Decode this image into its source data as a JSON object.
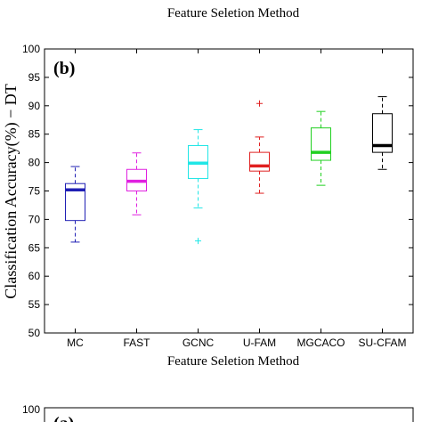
{
  "top_caption": "Feature Seletion Method",
  "chart_data": {
    "type": "box",
    "panel_label": "(b)",
    "xlabel": "Feature Seletion Method",
    "ylabel": "Classification Accuracy(%) − DT",
    "ylim": [
      50,
      100
    ],
    "yticks": [
      50,
      55,
      60,
      65,
      70,
      75,
      80,
      85,
      90,
      95,
      100
    ],
    "grid": false,
    "categories": [
      "MC",
      "FAST",
      "GCNC",
      "U-FAM",
      "MGCACO",
      "SU-CFAM"
    ],
    "series": [
      {
        "category": "MC",
        "color": "#1f1fb4",
        "q1": 69.8,
        "median": 75.2,
        "q3": 76.3,
        "whisker_low": 66.0,
        "whisker_high": 79.3,
        "outliers": []
      },
      {
        "category": "FAST",
        "color": "#e020e0",
        "q1": 75.0,
        "median": 76.7,
        "q3": 78.8,
        "whisker_low": 70.8,
        "whisker_high": 81.7,
        "outliers": []
      },
      {
        "category": "GCNC",
        "color": "#20e6e6",
        "q1": 77.2,
        "median": 79.9,
        "q3": 83.0,
        "whisker_low": 72.0,
        "whisker_high": 85.8,
        "outliers": [
          66.2
        ]
      },
      {
        "category": "U-FAM",
        "color": "#e02020",
        "q1": 78.5,
        "median": 79.4,
        "q3": 81.8,
        "whisker_low": 74.6,
        "whisker_high": 84.5,
        "outliers": [
          90.4
        ]
      },
      {
        "category": "MGCACO",
        "color": "#20d020",
        "q1": 80.4,
        "median": 81.8,
        "q3": 86.1,
        "whisker_low": 76.0,
        "whisker_high": 89.0,
        "outliers": []
      },
      {
        "category": "SU-CFAM",
        "color": "#000000",
        "q1": 81.8,
        "median": 83.0,
        "q3": 88.6,
        "whisker_low": 78.8,
        "whisker_high": 91.6,
        "outliers": []
      }
    ]
  },
  "next_panel": {
    "panel_label": "(a)",
    "ytick_top": "100"
  }
}
